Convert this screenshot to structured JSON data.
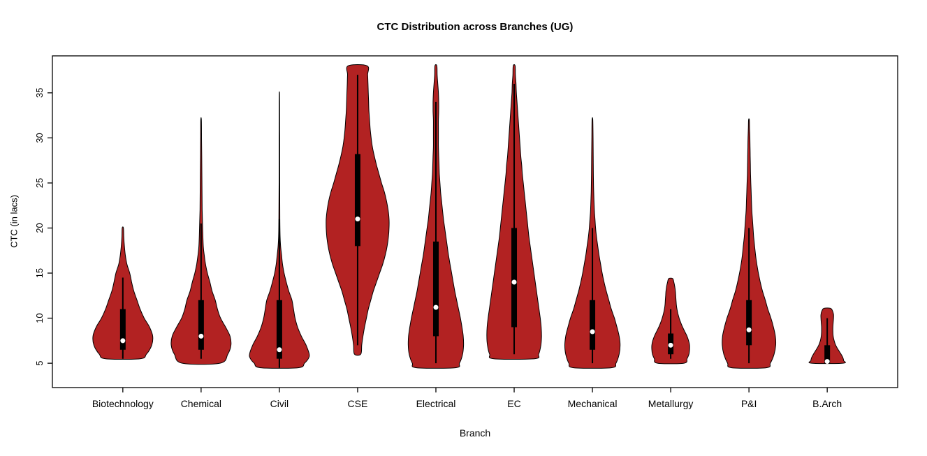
{
  "chart_data": {
    "type": "violin",
    "title": "CTC Distribution across Branches (UG)",
    "xlabel": "Branch",
    "ylabel": "CTC (in lacs)",
    "ylim": [
      2.3,
      39.1
    ],
    "yticks": [
      5,
      10,
      15,
      20,
      25,
      30,
      35
    ],
    "grid": false,
    "legend": "none",
    "categories": [
      "Biotechnology",
      "Chemical",
      "Civil",
      "CSE",
      "Electrical",
      "EC",
      "Mechanical",
      "Metallurgy",
      "P&I",
      "B.Arch"
    ],
    "colors": {
      "violin_fill": "#B22222",
      "outline": "#000000",
      "box": "#000000",
      "median_dot": "#FFFFFF",
      "background": "#FFFFFF"
    },
    "series": [
      {
        "name": "Biotechnology",
        "range": [
          5.5,
          20
        ],
        "q1": 6.5,
        "q3": 11,
        "median": 7.5,
        "whisker_low": 5.5,
        "whisker_high": 14.5,
        "profile": [
          [
            5.5,
            0.55
          ],
          [
            6,
            0.75
          ],
          [
            7,
            0.92
          ],
          [
            8,
            0.95
          ],
          [
            9,
            0.85
          ],
          [
            10,
            0.68
          ],
          [
            11,
            0.55
          ],
          [
            12,
            0.45
          ],
          [
            13,
            0.35
          ],
          [
            14,
            0.28
          ],
          [
            15,
            0.22
          ],
          [
            16,
            0.13
          ],
          [
            17,
            0.08
          ],
          [
            18,
            0.05
          ],
          [
            19,
            0.03
          ],
          [
            20,
            0.02
          ]
        ]
      },
      {
        "name": "Chemical",
        "range": [
          5,
          32
        ],
        "q1": 6.5,
        "q3": 12,
        "median": 8,
        "whisker_low": 5.5,
        "whisker_high": 20.5,
        "profile": [
          [
            5,
            0.6
          ],
          [
            6,
            0.85
          ],
          [
            7,
            0.95
          ],
          [
            8,
            0.92
          ],
          [
            9,
            0.78
          ],
          [
            10,
            0.62
          ],
          [
            11,
            0.52
          ],
          [
            12,
            0.45
          ],
          [
            13,
            0.35
          ],
          [
            14,
            0.28
          ],
          [
            15,
            0.2
          ],
          [
            16,
            0.14
          ],
          [
            17,
            0.1
          ],
          [
            18,
            0.07
          ],
          [
            20,
            0.05
          ],
          [
            22,
            0.035
          ],
          [
            24,
            0.03
          ],
          [
            26,
            0.025
          ],
          [
            28,
            0.02
          ],
          [
            30,
            0.015
          ],
          [
            32,
            0.01
          ]
        ]
      },
      {
        "name": "Civil",
        "range": [
          4.5,
          35
        ],
        "q1": 5.5,
        "q3": 12,
        "median": 6.5,
        "whisker_low": 4.5,
        "whisker_high": 21,
        "profile": [
          [
            4.5,
            0.6
          ],
          [
            5,
            0.8
          ],
          [
            5.5,
            0.92
          ],
          [
            6,
            0.95
          ],
          [
            7,
            0.85
          ],
          [
            8,
            0.7
          ],
          [
            9,
            0.58
          ],
          [
            10,
            0.5
          ],
          [
            11,
            0.45
          ],
          [
            12,
            0.4
          ],
          [
            13,
            0.3
          ],
          [
            14,
            0.22
          ],
          [
            15,
            0.15
          ],
          [
            16,
            0.1
          ],
          [
            17,
            0.07
          ],
          [
            18,
            0.04
          ],
          [
            19,
            0.025
          ],
          [
            21,
            0.015
          ],
          [
            25,
            0.01
          ],
          [
            30,
            0.008
          ],
          [
            34,
            0.006
          ],
          [
            35,
            0.004
          ]
        ]
      },
      {
        "name": "CSE",
        "range": [
          6,
          38
        ],
        "q1": 18,
        "q3": 28.2,
        "median": 21,
        "whisker_low": 7,
        "whisker_high": 37,
        "profile": [
          [
            6,
            0.1
          ],
          [
            7,
            0.13
          ],
          [
            8,
            0.17
          ],
          [
            9,
            0.22
          ],
          [
            10,
            0.28
          ],
          [
            11,
            0.34
          ],
          [
            12,
            0.42
          ],
          [
            13,
            0.5
          ],
          [
            14,
            0.6
          ],
          [
            15,
            0.7
          ],
          [
            16,
            0.8
          ],
          [
            17,
            0.88
          ],
          [
            18,
            0.94
          ],
          [
            19,
            0.98
          ],
          [
            20,
            1.0
          ],
          [
            21,
            1.0
          ],
          [
            22,
            0.97
          ],
          [
            23,
            0.92
          ],
          [
            24,
            0.85
          ],
          [
            25,
            0.76
          ],
          [
            26,
            0.68
          ],
          [
            27,
            0.6
          ],
          [
            28,
            0.53
          ],
          [
            29,
            0.47
          ],
          [
            30,
            0.43
          ],
          [
            31,
            0.4
          ],
          [
            32,
            0.38
          ],
          [
            33,
            0.36
          ],
          [
            34,
            0.35
          ],
          [
            35,
            0.34
          ],
          [
            36,
            0.33
          ],
          [
            37,
            0.32
          ],
          [
            38,
            0.3
          ]
        ]
      },
      {
        "name": "Electrical",
        "range": [
          4.5,
          38
        ],
        "q1": 8,
        "q3": 18.5,
        "median": 11.2,
        "whisker_low": 5,
        "whisker_high": 34,
        "profile": [
          [
            4.5,
            0.62
          ],
          [
            5,
            0.75
          ],
          [
            6,
            0.85
          ],
          [
            7,
            0.88
          ],
          [
            8,
            0.87
          ],
          [
            9,
            0.83
          ],
          [
            10,
            0.78
          ],
          [
            11,
            0.72
          ],
          [
            12,
            0.66
          ],
          [
            13,
            0.6
          ],
          [
            14,
            0.55
          ],
          [
            15,
            0.5
          ],
          [
            16,
            0.45
          ],
          [
            17,
            0.4
          ],
          [
            18,
            0.36
          ],
          [
            19,
            0.32
          ],
          [
            20,
            0.28
          ],
          [
            21,
            0.24
          ],
          [
            22,
            0.21
          ],
          [
            23,
            0.18
          ],
          [
            24,
            0.15
          ],
          [
            25,
            0.13
          ],
          [
            26,
            0.11
          ],
          [
            27,
            0.1
          ],
          [
            28,
            0.09
          ],
          [
            29,
            0.08
          ],
          [
            30,
            0.08
          ],
          [
            31,
            0.08
          ],
          [
            32,
            0.08
          ],
          [
            33,
            0.09
          ],
          [
            34,
            0.09
          ],
          [
            35,
            0.08
          ],
          [
            36,
            0.06
          ],
          [
            37,
            0.04
          ],
          [
            38,
            0.03
          ]
        ]
      },
      {
        "name": "EC",
        "range": [
          5.5,
          38
        ],
        "q1": 9,
        "q3": 20,
        "median": 14,
        "whisker_low": 6,
        "whisker_high": 36,
        "profile": [
          [
            5.5,
            0.65
          ],
          [
            6,
            0.78
          ],
          [
            7,
            0.85
          ],
          [
            8,
            0.87
          ],
          [
            9,
            0.86
          ],
          [
            10,
            0.83
          ],
          [
            11,
            0.79
          ],
          [
            12,
            0.75
          ],
          [
            13,
            0.71
          ],
          [
            14,
            0.67
          ],
          [
            15,
            0.63
          ],
          [
            16,
            0.59
          ],
          [
            17,
            0.55
          ],
          [
            18,
            0.51
          ],
          [
            19,
            0.47
          ],
          [
            20,
            0.44
          ],
          [
            21,
            0.41
          ],
          [
            22,
            0.38
          ],
          [
            23,
            0.35
          ],
          [
            24,
            0.32
          ],
          [
            25,
            0.29
          ],
          [
            26,
            0.26
          ],
          [
            27,
            0.24
          ],
          [
            28,
            0.21
          ],
          [
            29,
            0.19
          ],
          [
            30,
            0.17
          ],
          [
            31,
            0.15
          ],
          [
            32,
            0.13
          ],
          [
            33,
            0.11
          ],
          [
            34,
            0.09
          ],
          [
            35,
            0.07
          ],
          [
            36,
            0.06
          ],
          [
            37,
            0.04
          ],
          [
            38,
            0.03
          ]
        ]
      },
      {
        "name": "Mechanical",
        "range": [
          4.5,
          32
        ],
        "q1": 6.5,
        "q3": 12,
        "median": 8.5,
        "whisker_low": 5,
        "whisker_high": 20,
        "profile": [
          [
            4.5,
            0.6
          ],
          [
            5,
            0.75
          ],
          [
            6,
            0.85
          ],
          [
            7,
            0.88
          ],
          [
            8,
            0.85
          ],
          [
            9,
            0.78
          ],
          [
            10,
            0.7
          ],
          [
            11,
            0.6
          ],
          [
            12,
            0.52
          ],
          [
            13,
            0.44
          ],
          [
            14,
            0.37
          ],
          [
            15,
            0.31
          ],
          [
            16,
            0.26
          ],
          [
            17,
            0.21
          ],
          [
            18,
            0.17
          ],
          [
            19,
            0.13
          ],
          [
            20,
            0.1
          ],
          [
            21,
            0.08
          ],
          [
            22,
            0.06
          ],
          [
            24,
            0.04
          ],
          [
            26,
            0.03
          ],
          [
            28,
            0.025
          ],
          [
            30,
            0.02
          ],
          [
            32,
            0.012
          ]
        ]
      },
      {
        "name": "Metallurgy",
        "range": [
          5,
          14.4
        ],
        "q1": 6,
        "q3": 8.3,
        "median": 7,
        "whisker_low": 5.5,
        "whisker_high": 11,
        "profile": [
          [
            5,
            0.42
          ],
          [
            5.5,
            0.52
          ],
          [
            6,
            0.58
          ],
          [
            6.5,
            0.6
          ],
          [
            7,
            0.6
          ],
          [
            7.5,
            0.57
          ],
          [
            8,
            0.52
          ],
          [
            8.5,
            0.45
          ],
          [
            9,
            0.38
          ],
          [
            9.5,
            0.32
          ],
          [
            10,
            0.27
          ],
          [
            10.5,
            0.23
          ],
          [
            11,
            0.2
          ],
          [
            11.5,
            0.18
          ],
          [
            12,
            0.17
          ],
          [
            12.5,
            0.16
          ],
          [
            13,
            0.15
          ],
          [
            13.5,
            0.13
          ],
          [
            14,
            0.1
          ],
          [
            14.4,
            0.06
          ]
        ]
      },
      {
        "name": "P&I",
        "range": [
          4.5,
          32
        ],
        "q1": 7,
        "q3": 12,
        "median": 8.7,
        "whisker_low": 5,
        "whisker_high": 20,
        "profile": [
          [
            4.5,
            0.55
          ],
          [
            5,
            0.68
          ],
          [
            6,
            0.8
          ],
          [
            7,
            0.85
          ],
          [
            8,
            0.84
          ],
          [
            9,
            0.78
          ],
          [
            10,
            0.7
          ],
          [
            11,
            0.6
          ],
          [
            12,
            0.52
          ],
          [
            13,
            0.43
          ],
          [
            14,
            0.36
          ],
          [
            15,
            0.3
          ],
          [
            16,
            0.25
          ],
          [
            17,
            0.21
          ],
          [
            18,
            0.18
          ],
          [
            19,
            0.15
          ],
          [
            20,
            0.13
          ],
          [
            21,
            0.11
          ],
          [
            22,
            0.09
          ],
          [
            23,
            0.08
          ],
          [
            24,
            0.07
          ],
          [
            25,
            0.06
          ],
          [
            26,
            0.05
          ],
          [
            27,
            0.045
          ],
          [
            28,
            0.04
          ],
          [
            29,
            0.035
          ],
          [
            30,
            0.03
          ],
          [
            31,
            0.02
          ],
          [
            32,
            0.012
          ]
        ]
      },
      {
        "name": "B.Arch",
        "range": [
          5,
          11.1
        ],
        "q1": 5,
        "q3": 7,
        "median": 5.2,
        "whisker_low": 5,
        "whisker_high": 10,
        "profile": [
          [
            5,
            0.5
          ],
          [
            5.3,
            0.52
          ],
          [
            5.6,
            0.5
          ],
          [
            6,
            0.44
          ],
          [
            6.5,
            0.35
          ],
          [
            7,
            0.27
          ],
          [
            7.5,
            0.22
          ],
          [
            8,
            0.19
          ],
          [
            8.5,
            0.18
          ],
          [
            9,
            0.18
          ],
          [
            9.5,
            0.19
          ],
          [
            10,
            0.2
          ],
          [
            10.4,
            0.2
          ],
          [
            10.8,
            0.17
          ],
          [
            11.1,
            0.1
          ]
        ]
      }
    ]
  }
}
